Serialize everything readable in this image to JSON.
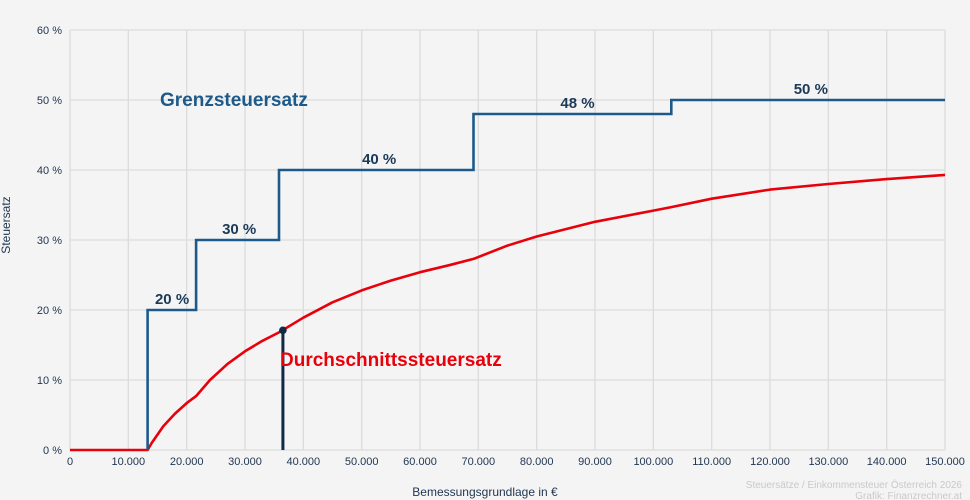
{
  "chart_data": {
    "type": "line",
    "title": "",
    "xlabel": "Bemessungsgrundlage in €",
    "ylabel": "Steuersatz",
    "xlim": [
      0,
      150000
    ],
    "ylim": [
      0,
      60
    ],
    "grid": true,
    "x_ticks": [
      0,
      10000,
      20000,
      30000,
      40000,
      50000,
      60000,
      70000,
      80000,
      90000,
      100000,
      110000,
      120000,
      130000,
      140000,
      150000
    ],
    "x_tick_labels": [
      "0",
      "10.000",
      "20.000",
      "30.000",
      "40.000",
      "50.000",
      "60.000",
      "70.000",
      "80.000",
      "90.000",
      "100.000",
      "110.000",
      "120.000",
      "130.000",
      "140.000",
      "150.000"
    ],
    "y_ticks": [
      0,
      10,
      20,
      30,
      40,
      50,
      60
    ],
    "y_tick_labels": [
      "0 %",
      "10 %",
      "20 %",
      "30 %",
      "40 %",
      "50 %",
      "60 %"
    ],
    "series": [
      {
        "name": "Grenzsteuersatz",
        "type": "step",
        "color": "#1d5a8a",
        "x": [
          0,
          13308,
          13308,
          21617,
          21617,
          35836,
          35836,
          69166,
          69166,
          103072,
          103072,
          150000
        ],
        "y": [
          0,
          0,
          20,
          20,
          30,
          30,
          40,
          40,
          48,
          48,
          50,
          50
        ],
        "bracket_labels": [
          {
            "text": "20 %",
            "x": 17500,
            "y": 20
          },
          {
            "text": "30 %",
            "x": 29000,
            "y": 30
          },
          {
            "text": "40 %",
            "x": 53000,
            "y": 40
          },
          {
            "text": "48 %",
            "x": 87000,
            "y": 48
          },
          {
            "text": "50 %",
            "x": 127000,
            "y": 50
          }
        ]
      },
      {
        "name": "Durchschnittssteuersatz",
        "type": "line",
        "color": "#e8000b",
        "x": [
          0,
          13308,
          14000,
          16000,
          18000,
          20000,
          21617,
          24000,
          27000,
          30000,
          33000,
          35836,
          40000,
          45000,
          50000,
          55000,
          60000,
          65000,
          69166,
          75000,
          80000,
          90000,
          100000,
          103072,
          110000,
          120000,
          130000,
          140000,
          150000
        ],
        "y": [
          0,
          0,
          1.0,
          3.4,
          5.2,
          6.7,
          7.7,
          10.0,
          12.3,
          14.1,
          15.6,
          16.8,
          18.9,
          21.1,
          22.8,
          24.2,
          25.4,
          26.4,
          27.3,
          29.2,
          30.5,
          32.6,
          34.2,
          34.7,
          35.9,
          37.2,
          38.0,
          38.7,
          39.3
        ]
      }
    ],
    "marker": {
      "x": 36500,
      "y": 17.1,
      "color": "#0e2a47",
      "description": "vertical marker line with dot"
    },
    "annotations": [
      "Grenzsteuersatz",
      "Durchschnittssteuersatz"
    ],
    "legend": "none (inline labels)"
  },
  "labels": {
    "marginal": "Grenzsteuersatz",
    "average": "Durchschnittssteuersatz",
    "xlabel": "Bemessungsgrundlage in €",
    "ylabel": "Steuersatz"
  },
  "credits": {
    "line1": "Steuersätze / Einkommensteuer Österreich 2026",
    "line2": "Grafik: Finanzrechner.at"
  },
  "colors": {
    "background": "#f4f4f4",
    "grid": "#dcdcdc",
    "marginal": "#1d5a8a",
    "average": "#e8000b",
    "marker": "#0e2a47",
    "tick_text": "#1f3550"
  }
}
